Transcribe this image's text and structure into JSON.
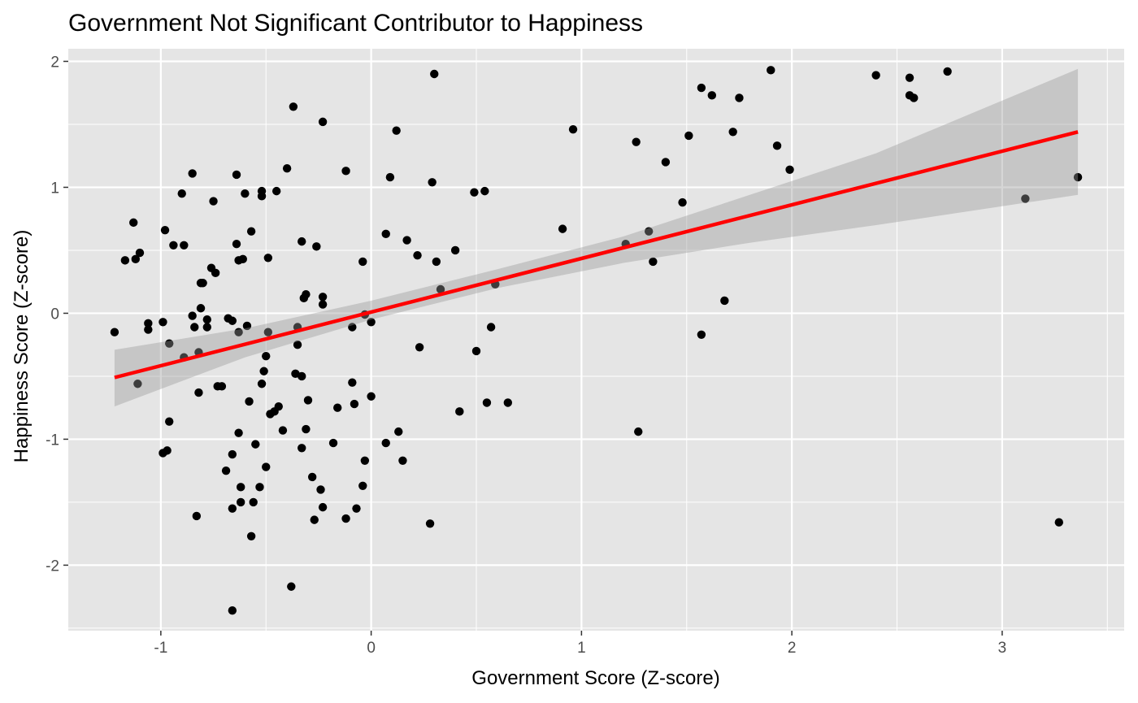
{
  "chart_data": {
    "type": "scatter",
    "title": "Government Not Significant Contributor to Happiness",
    "xlabel": "Government Score (Z-score)",
    "ylabel": "Happiness Score (Z-score)",
    "xlim": [
      -1.44,
      3.58
    ],
    "ylim": [
      -2.52,
      2.1
    ],
    "xticks": [
      -1,
      0,
      1,
      2,
      3
    ],
    "xtick_labels": [
      "-1",
      "0",
      "1",
      "2",
      "3"
    ],
    "yticks": [
      -2,
      -1,
      0,
      1,
      2
    ],
    "ytick_labels": [
      "-2",
      "-1",
      "0",
      "1",
      "2"
    ],
    "grid": true,
    "legend": "none",
    "colors": {
      "panel": "#e5e5e5",
      "grid": "#ffffff",
      "points": "#000000",
      "fit_line": "#ff0000",
      "confidence_band": "#bebebe"
    },
    "points": [
      [
        -1.22,
        -0.15
      ],
      [
        -1.17,
        0.42
      ],
      [
        -1.13,
        0.72
      ],
      [
        -1.12,
        0.43
      ],
      [
        -1.1,
        0.48
      ],
      [
        -1.11,
        -0.56
      ],
      [
        -1.06,
        -0.08
      ],
      [
        -1.06,
        -0.13
      ],
      [
        -0.99,
        -0.07
      ],
      [
        -0.98,
        0.66
      ],
      [
        -0.99,
        -1.11
      ],
      [
        -0.97,
        -1.09
      ],
      [
        -0.96,
        -0.24
      ],
      [
        -0.96,
        -0.86
      ],
      [
        -0.94,
        0.54
      ],
      [
        -0.9,
        0.95
      ],
      [
        -0.89,
        0.54
      ],
      [
        -0.89,
        -0.35
      ],
      [
        -0.85,
        1.11
      ],
      [
        -0.85,
        -0.02
      ],
      [
        -0.84,
        -0.11
      ],
      [
        -0.83,
        -1.61
      ],
      [
        -0.82,
        -0.31
      ],
      [
        -0.82,
        -0.63
      ],
      [
        -0.81,
        0.24
      ],
      [
        -0.8,
        0.24
      ],
      [
        -0.81,
        0.04
      ],
      [
        -0.78,
        -0.05
      ],
      [
        -0.78,
        -0.11
      ],
      [
        -0.76,
        0.36
      ],
      [
        -0.75,
        0.89
      ],
      [
        -0.74,
        0.32
      ],
      [
        -0.73,
        -0.58
      ],
      [
        -0.71,
        -0.58
      ],
      [
        -0.69,
        -1.25
      ],
      [
        -0.68,
        -0.04
      ],
      [
        -0.66,
        -0.06
      ],
      [
        -0.66,
        -1.12
      ],
      [
        -0.66,
        -1.55
      ],
      [
        -0.66,
        -2.36
      ],
      [
        -0.64,
        1.1
      ],
      [
        -0.64,
        0.55
      ],
      [
        -0.63,
        -0.15
      ],
      [
        -0.63,
        -0.95
      ],
      [
        -0.62,
        -1.38
      ],
      [
        -0.62,
        -1.5
      ],
      [
        -0.63,
        0.42
      ],
      [
        -0.61,
        0.43
      ],
      [
        -0.6,
        0.95
      ],
      [
        -0.59,
        -0.1
      ],
      [
        -0.58,
        -0.7
      ],
      [
        -0.57,
        0.65
      ],
      [
        -0.57,
        -1.77
      ],
      [
        -0.56,
        -1.5
      ],
      [
        -0.55,
        -1.04
      ],
      [
        -0.53,
        -1.38
      ],
      [
        -0.52,
        0.97
      ],
      [
        -0.52,
        0.93
      ],
      [
        -0.52,
        -0.56
      ],
      [
        -0.51,
        -0.46
      ],
      [
        -0.5,
        -0.34
      ],
      [
        -0.5,
        -1.22
      ],
      [
        -0.49,
        0.44
      ],
      [
        -0.49,
        -0.15
      ],
      [
        -0.48,
        -0.8
      ],
      [
        -0.46,
        -0.78
      ],
      [
        -0.45,
        0.97
      ],
      [
        -0.44,
        -0.74
      ],
      [
        -0.42,
        -0.93
      ],
      [
        -0.4,
        1.15
      ],
      [
        -0.38,
        -2.17
      ],
      [
        -0.37,
        1.64
      ],
      [
        -0.36,
        -0.48
      ],
      [
        -0.35,
        -0.11
      ],
      [
        -0.35,
        -0.25
      ],
      [
        -0.33,
        -0.5
      ],
      [
        -0.33,
        0.57
      ],
      [
        -0.33,
        -1.07
      ],
      [
        -0.32,
        0.12
      ],
      [
        -0.31,
        0.15
      ],
      [
        -0.31,
        -0.92
      ],
      [
        -0.3,
        -0.69
      ],
      [
        -0.28,
        -1.3
      ],
      [
        -0.27,
        -1.64
      ],
      [
        -0.26,
        0.53
      ],
      [
        -0.24,
        -1.4
      ],
      [
        -0.23,
        0.13
      ],
      [
        -0.23,
        0.07
      ],
      [
        -0.23,
        1.52
      ],
      [
        -0.23,
        -1.54
      ],
      [
        -0.18,
        -1.03
      ],
      [
        -0.16,
        -0.75
      ],
      [
        -0.12,
        1.13
      ],
      [
        -0.12,
        -1.63
      ],
      [
        -0.09,
        -0.11
      ],
      [
        -0.09,
        -0.55
      ],
      [
        -0.08,
        -0.72
      ],
      [
        -0.07,
        -1.55
      ],
      [
        -0.04,
        0.41
      ],
      [
        -0.04,
        -1.37
      ],
      [
        -0.03,
        -0.01
      ],
      [
        -0.03,
        -1.17
      ],
      [
        0.0,
        -0.07
      ],
      [
        0.0,
        -0.66
      ],
      [
        0.07,
        0.63
      ],
      [
        0.07,
        -1.03
      ],
      [
        0.09,
        1.08
      ],
      [
        0.12,
        1.45
      ],
      [
        0.13,
        -0.94
      ],
      [
        0.15,
        -1.17
      ],
      [
        0.17,
        0.58
      ],
      [
        0.22,
        0.46
      ],
      [
        0.23,
        -0.27
      ],
      [
        0.28,
        -1.67
      ],
      [
        0.29,
        1.04
      ],
      [
        0.3,
        1.9
      ],
      [
        0.31,
        0.41
      ],
      [
        0.33,
        0.19
      ],
      [
        0.4,
        0.5
      ],
      [
        0.42,
        -0.78
      ],
      [
        0.49,
        0.96
      ],
      [
        0.5,
        -0.3
      ],
      [
        0.54,
        0.97
      ],
      [
        0.55,
        -0.71
      ],
      [
        0.57,
        -0.11
      ],
      [
        0.59,
        0.23
      ],
      [
        0.65,
        -0.71
      ],
      [
        0.91,
        0.67
      ],
      [
        0.96,
        1.46
      ],
      [
        1.21,
        0.55
      ],
      [
        1.26,
        1.36
      ],
      [
        1.27,
        -0.94
      ],
      [
        1.32,
        0.65
      ],
      [
        1.34,
        0.41
      ],
      [
        1.4,
        1.2
      ],
      [
        1.48,
        0.88
      ],
      [
        1.51,
        1.41
      ],
      [
        1.57,
        1.79
      ],
      [
        1.57,
        -0.17
      ],
      [
        1.62,
        1.73
      ],
      [
        1.68,
        0.1
      ],
      [
        1.72,
        1.44
      ],
      [
        1.75,
        1.71
      ],
      [
        1.9,
        1.93
      ],
      [
        1.93,
        1.33
      ],
      [
        1.99,
        1.14
      ],
      [
        2.4,
        1.89
      ],
      [
        2.56,
        1.87
      ],
      [
        2.56,
        1.73
      ],
      [
        2.58,
        1.71
      ],
      [
        2.74,
        1.92
      ],
      [
        3.11,
        0.91
      ],
      [
        3.27,
        -1.66
      ],
      [
        3.36,
        1.08
      ]
    ],
    "fit_line": {
      "x": [
        -1.22,
        3.36
      ],
      "y": [
        -0.51,
        1.44
      ]
    },
    "confidence_band": {
      "x": [
        -1.22,
        -0.6,
        0.0,
        0.6,
        1.2,
        1.8,
        2.4,
        3.36
      ],
      "lower": [
        -0.74,
        -0.35,
        -0.05,
        0.2,
        0.4,
        0.56,
        0.7,
        0.94
      ],
      "upper": [
        -0.29,
        -0.12,
        0.1,
        0.35,
        0.61,
        0.94,
        1.27,
        1.94
      ]
    }
  }
}
